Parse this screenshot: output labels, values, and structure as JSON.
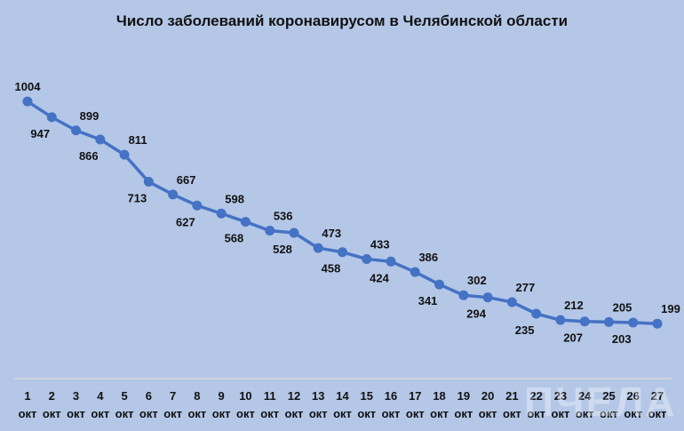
{
  "chart_data": {
    "type": "line",
    "title": "Число заболеваний коронавирусом в Челябинской области",
    "categories": [
      "1",
      "2",
      "3",
      "4",
      "5",
      "6",
      "7",
      "8",
      "9",
      "10",
      "11",
      "12",
      "13",
      "14",
      "15",
      "16",
      "17",
      "18",
      "19",
      "20",
      "21",
      "22",
      "23",
      "24",
      "25",
      "26",
      "27"
    ],
    "category_unit": "окт",
    "values": [
      1004,
      947,
      899,
      866,
      811,
      713,
      667,
      627,
      598,
      568,
      536,
      528,
      473,
      458,
      433,
      424,
      386,
      341,
      302,
      294,
      277,
      235,
      212,
      207,
      205,
      203,
      199
    ],
    "ylim": [
      0,
      1100
    ],
    "y_axis_visible": false,
    "grid": false,
    "data_labels": true,
    "colors": {
      "line": "#4472c4",
      "background": "#b4c7e7",
      "axis": "#d9d9d9"
    }
  },
  "watermark": "ПЧЕЛА"
}
